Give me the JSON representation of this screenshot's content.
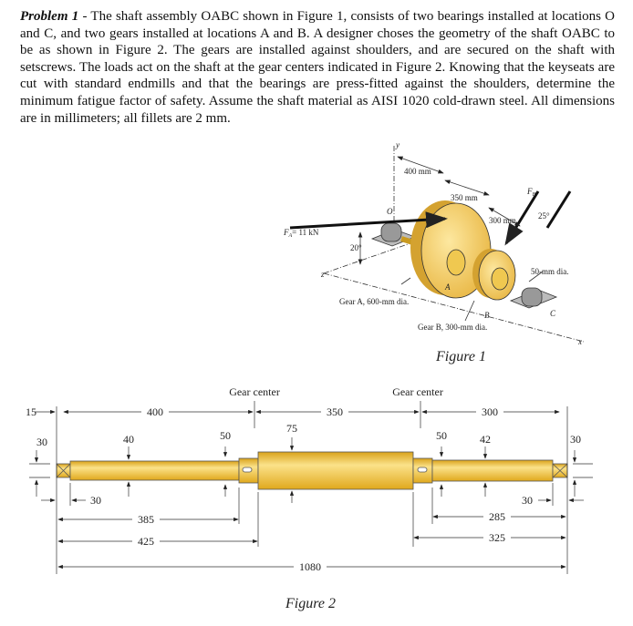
{
  "problem": {
    "label": "Problem 1",
    "text": " - The shaft assembly OABC shown in Figure 1, consists of two bearings installed at locations O and C, and two gears installed at locations A and B. A designer choses the geometry of the shaft OABC to be as shown in Figure 2. The gears are installed against shoulders, and are secured on the shaft with setscrews. The loads act on the shaft at the gear centers indicated in Figure 2. Knowing that the keyseats are cut with standard endmills and that the bearings are press-fitted against the shoulders, determine the minimum fatigue factor of safety. Assume the shaft material as AISI 1020 cold-drawn steel. All dimensions are in millimeters; all fillets are 2 mm."
  },
  "figure1": {
    "caption": "Figure 1",
    "y": "y",
    "z": "z",
    "x": "x",
    "O": "O",
    "A": "A",
    "B": "B",
    "C": "C",
    "d400": "400 mm",
    "d350": "350 mm",
    "d300": "300 mm",
    "FA": "F",
    "FA_sub": "A",
    "FA_val": "= 11 kN",
    "FB": "F",
    "FB_sub": "B",
    "ang20": "20°",
    "ang25": "25°",
    "dia50": "50-mm dia.",
    "gearA": "Gear A, 600-mm dia.",
    "gearB": "Gear B, 300-mm dia.",
    "color_gear": "#f2c75a"
  },
  "figure2": {
    "caption": "Figure 2",
    "gear_center_1": "Gear center",
    "gear_center_2": "Gear center",
    "d15": "15",
    "d400": "400",
    "d350": "350",
    "d300": "300",
    "dia30_l": "30",
    "dia40": "40",
    "dia50_l": "50",
    "dia75": "75",
    "dia50_r": "50",
    "dia42": "42",
    "dia30_r": "30",
    "l30_l": "30",
    "l30_r": "30",
    "d385": "385",
    "d425": "425",
    "d285": "285",
    "d325": "325",
    "d1080": "1080",
    "color_shaft": "#f0c030"
  }
}
